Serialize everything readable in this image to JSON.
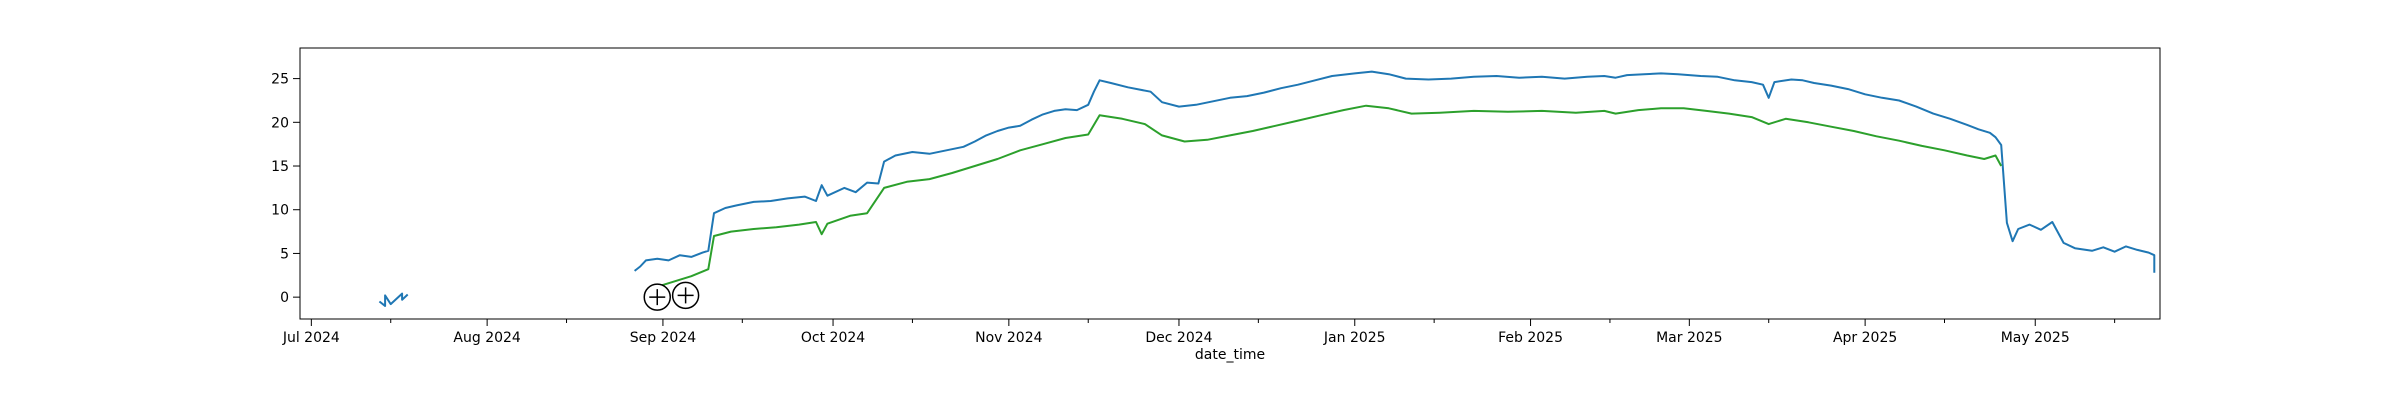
{
  "chart_data": {
    "type": "line",
    "title": "",
    "xlabel": "date_time",
    "ylabel": "",
    "x_range": [
      "2024-06-29",
      "2025-05-23"
    ],
    "ylim": [
      -2.5,
      28.5
    ],
    "grid": false,
    "x_ticks": [
      {
        "date": "2024-07-01",
        "label": "Jul 2024"
      },
      {
        "date": "2024-08-01",
        "label": "Aug 2024"
      },
      {
        "date": "2024-09-01",
        "label": "Sep 2024"
      },
      {
        "date": "2024-10-01",
        "label": "Oct 2024"
      },
      {
        "date": "2024-11-01",
        "label": "Nov 2024"
      },
      {
        "date": "2024-12-01",
        "label": "Dec 2024"
      },
      {
        "date": "2025-01-01",
        "label": "Jan 2025"
      },
      {
        "date": "2025-02-01",
        "label": "Feb 2025"
      },
      {
        "date": "2025-03-01",
        "label": "Mar 2025"
      },
      {
        "date": "2025-04-01",
        "label": "Apr 2025"
      },
      {
        "date": "2025-05-01",
        "label": "May 2025"
      }
    ],
    "x_minor_ticks": [
      "2024-07-15",
      "2024-08-15",
      "2024-09-15",
      "2024-10-15",
      "2024-11-15",
      "2024-12-15",
      "2025-01-15",
      "2025-02-15",
      "2025-03-15",
      "2025-04-15",
      "2025-05-15"
    ],
    "y_ticks": [
      0,
      5,
      10,
      15,
      20,
      25
    ],
    "series": [
      {
        "color": "#1f77b4",
        "segments": [
          [
            [
              "2024-07-13",
              -0.5
            ],
            [
              "2024-07-14",
              -1.0
            ],
            [
              "2024-07-14",
              0.2
            ],
            [
              "2024-07-15",
              -0.8
            ],
            [
              "2024-07-16",
              -0.2
            ],
            [
              "2024-07-17",
              0.4
            ],
            [
              "2024-07-17",
              -0.3
            ],
            [
              "2024-07-18",
              0.3
            ]
          ],
          [
            [
              "2024-08-27",
              3.0
            ],
            [
              "2024-08-28",
              3.5
            ],
            [
              "2024-08-29",
              4.2
            ],
            [
              "2024-08-31",
              4.4
            ],
            [
              "2024-09-02",
              4.2
            ],
            [
              "2024-09-04",
              4.8
            ],
            [
              "2024-09-06",
              4.6
            ],
            [
              "2024-09-08",
              5.1
            ],
            [
              "2024-09-09",
              5.3
            ],
            [
              "2024-09-10",
              9.6
            ],
            [
              "2024-09-12",
              10.2
            ],
            [
              "2024-09-14",
              10.5
            ],
            [
              "2024-09-17",
              10.9
            ],
            [
              "2024-09-20",
              11.0
            ],
            [
              "2024-09-23",
              11.3
            ],
            [
              "2024-09-26",
              11.5
            ],
            [
              "2024-09-28",
              11.0
            ],
            [
              "2024-09-29",
              12.8
            ],
            [
              "2024-09-30",
              11.6
            ],
            [
              "2024-10-03",
              12.5
            ],
            [
              "2024-10-05",
              12.0
            ],
            [
              "2024-10-07",
              13.1
            ],
            [
              "2024-10-09",
              13.0
            ],
            [
              "2024-10-10",
              15.5
            ],
            [
              "2024-10-12",
              16.2
            ],
            [
              "2024-10-15",
              16.6
            ],
            [
              "2024-10-18",
              16.4
            ],
            [
              "2024-10-21",
              16.8
            ],
            [
              "2024-10-24",
              17.2
            ],
            [
              "2024-10-26",
              17.8
            ],
            [
              "2024-10-28",
              18.5
            ],
            [
              "2024-10-30",
              19.0
            ],
            [
              "2024-11-01",
              19.4
            ],
            [
              "2024-11-03",
              19.6
            ],
            [
              "2024-11-05",
              20.3
            ],
            [
              "2024-11-07",
              20.9
            ],
            [
              "2024-11-09",
              21.3
            ],
            [
              "2024-11-11",
              21.5
            ],
            [
              "2024-11-13",
              21.4
            ],
            [
              "2024-11-15",
              22.0
            ],
            [
              "2024-11-16",
              23.5
            ],
            [
              "2024-11-17",
              24.8
            ],
            [
              "2024-11-19",
              24.5
            ],
            [
              "2024-11-22",
              24.0
            ],
            [
              "2024-11-26",
              23.5
            ],
            [
              "2024-11-28",
              22.3
            ],
            [
              "2024-12-01",
              21.8
            ],
            [
              "2024-12-04",
              22.0
            ],
            [
              "2024-12-07",
              22.4
            ],
            [
              "2024-12-10",
              22.8
            ],
            [
              "2024-12-13",
              23.0
            ],
            [
              "2024-12-16",
              23.4
            ],
            [
              "2024-12-19",
              23.9
            ],
            [
              "2024-12-22",
              24.3
            ],
            [
              "2024-12-25",
              24.8
            ],
            [
              "2024-12-28",
              25.3
            ],
            [
              "2025-01-01",
              25.6
            ],
            [
              "2025-01-04",
              25.8
            ],
            [
              "2025-01-07",
              25.5
            ],
            [
              "2025-01-10",
              25.0
            ],
            [
              "2025-01-14",
              24.9
            ],
            [
              "2025-01-18",
              25.0
            ],
            [
              "2025-01-22",
              25.2
            ],
            [
              "2025-01-26",
              25.3
            ],
            [
              "2025-01-30",
              25.1
            ],
            [
              "2025-02-03",
              25.2
            ],
            [
              "2025-02-07",
              25.0
            ],
            [
              "2025-02-11",
              25.2
            ],
            [
              "2025-02-14",
              25.3
            ],
            [
              "2025-02-16",
              25.1
            ],
            [
              "2025-02-18",
              25.4
            ],
            [
              "2025-02-21",
              25.5
            ],
            [
              "2025-02-24",
              25.6
            ],
            [
              "2025-02-27",
              25.5
            ],
            [
              "2025-03-03",
              25.3
            ],
            [
              "2025-03-06",
              25.2
            ],
            [
              "2025-03-09",
              24.8
            ],
            [
              "2025-03-12",
              24.6
            ],
            [
              "2025-03-14",
              24.3
            ],
            [
              "2025-03-15",
              22.8
            ],
            [
              "2025-03-16",
              24.6
            ],
            [
              "2025-03-19",
              24.9
            ],
            [
              "2025-03-21",
              24.8
            ],
            [
              "2025-03-23",
              24.5
            ],
            [
              "2025-03-26",
              24.2
            ],
            [
              "2025-03-29",
              23.8
            ],
            [
              "2025-04-01",
              23.2
            ],
            [
              "2025-04-04",
              22.8
            ],
            [
              "2025-04-07",
              22.5
            ],
            [
              "2025-04-10",
              21.8
            ],
            [
              "2025-04-13",
              21.0
            ],
            [
              "2025-04-16",
              20.4
            ],
            [
              "2025-04-19",
              19.7
            ],
            [
              "2025-04-21",
              19.2
            ],
            [
              "2025-04-23",
              18.8
            ],
            [
              "2025-04-24",
              18.3
            ],
            [
              "2025-04-25",
              17.4
            ],
            [
              "2025-04-26",
              8.5
            ],
            [
              "2025-04-27",
              6.4
            ],
            [
              "2025-04-28",
              7.8
            ],
            [
              "2025-04-30",
              8.3
            ],
            [
              "2025-05-02",
              7.7
            ],
            [
              "2025-05-04",
              8.6
            ],
            [
              "2025-05-06",
              6.2
            ],
            [
              "2025-05-08",
              5.6
            ],
            [
              "2025-05-11",
              5.3
            ],
            [
              "2025-05-13",
              5.7
            ],
            [
              "2025-05-15",
              5.2
            ],
            [
              "2025-05-17",
              5.8
            ],
            [
              "2025-05-19",
              5.4
            ],
            [
              "2025-05-21",
              5.1
            ],
            [
              "2025-05-22",
              4.8
            ],
            [
              "2025-05-22",
              2.8
            ]
          ]
        ]
      },
      {
        "color": "#2ca02c",
        "segments": [
          [
            [
              "2024-08-31",
              1.2
            ],
            [
              "2024-09-03",
              1.8
            ],
            [
              "2024-09-06",
              2.4
            ],
            [
              "2024-09-09",
              3.2
            ],
            [
              "2024-09-10",
              7.0
            ],
            [
              "2024-09-13",
              7.5
            ],
            [
              "2024-09-17",
              7.8
            ],
            [
              "2024-09-21",
              8.0
            ],
            [
              "2024-09-25",
              8.3
            ],
            [
              "2024-09-28",
              8.6
            ],
            [
              "2024-09-29",
              7.2
            ],
            [
              "2024-09-30",
              8.4
            ],
            [
              "2024-10-04",
              9.3
            ],
            [
              "2024-10-07",
              9.6
            ],
            [
              "2024-10-10",
              12.5
            ],
            [
              "2024-10-14",
              13.2
            ],
            [
              "2024-10-18",
              13.5
            ],
            [
              "2024-10-22",
              14.2
            ],
            [
              "2024-10-26",
              15.0
            ],
            [
              "2024-10-30",
              15.8
            ],
            [
              "2024-11-03",
              16.8
            ],
            [
              "2024-11-07",
              17.5
            ],
            [
              "2024-11-11",
              18.2
            ],
            [
              "2024-11-15",
              18.6
            ],
            [
              "2024-11-17",
              20.8
            ],
            [
              "2024-11-21",
              20.4
            ],
            [
              "2024-11-25",
              19.8
            ],
            [
              "2024-11-28",
              18.5
            ],
            [
              "2024-12-02",
              17.8
            ],
            [
              "2024-12-06",
              18.0
            ],
            [
              "2024-12-10",
              18.5
            ],
            [
              "2024-12-14",
              19.0
            ],
            [
              "2024-12-18",
              19.6
            ],
            [
              "2024-12-22",
              20.2
            ],
            [
              "2024-12-26",
              20.8
            ],
            [
              "2024-12-30",
              21.4
            ],
            [
              "2025-01-03",
              21.9
            ],
            [
              "2025-01-07",
              21.6
            ],
            [
              "2025-01-11",
              21.0
            ],
            [
              "2025-01-16",
              21.1
            ],
            [
              "2025-01-22",
              21.3
            ],
            [
              "2025-01-28",
              21.2
            ],
            [
              "2025-02-03",
              21.3
            ],
            [
              "2025-02-09",
              21.1
            ],
            [
              "2025-02-14",
              21.3
            ],
            [
              "2025-02-16",
              21.0
            ],
            [
              "2025-02-20",
              21.4
            ],
            [
              "2025-02-24",
              21.6
            ],
            [
              "2025-02-28",
              21.6
            ],
            [
              "2025-03-04",
              21.3
            ],
            [
              "2025-03-08",
              21.0
            ],
            [
              "2025-03-12",
              20.6
            ],
            [
              "2025-03-15",
              19.8
            ],
            [
              "2025-03-18",
              20.4
            ],
            [
              "2025-03-22",
              20.0
            ],
            [
              "2025-03-26",
              19.5
            ],
            [
              "2025-03-30",
              19.0
            ],
            [
              "2025-04-03",
              18.4
            ],
            [
              "2025-04-07",
              17.9
            ],
            [
              "2025-04-11",
              17.3
            ],
            [
              "2025-04-15",
              16.8
            ],
            [
              "2025-04-19",
              16.2
            ],
            [
              "2025-04-22",
              15.8
            ],
            [
              "2025-04-24",
              16.2
            ],
            [
              "2025-04-25",
              15.0
            ]
          ]
        ]
      }
    ],
    "markers": [
      {
        "date": "2024-08-31",
        "value": 0.0
      },
      {
        "date": "2024-09-05",
        "value": 0.2
      }
    ]
  }
}
